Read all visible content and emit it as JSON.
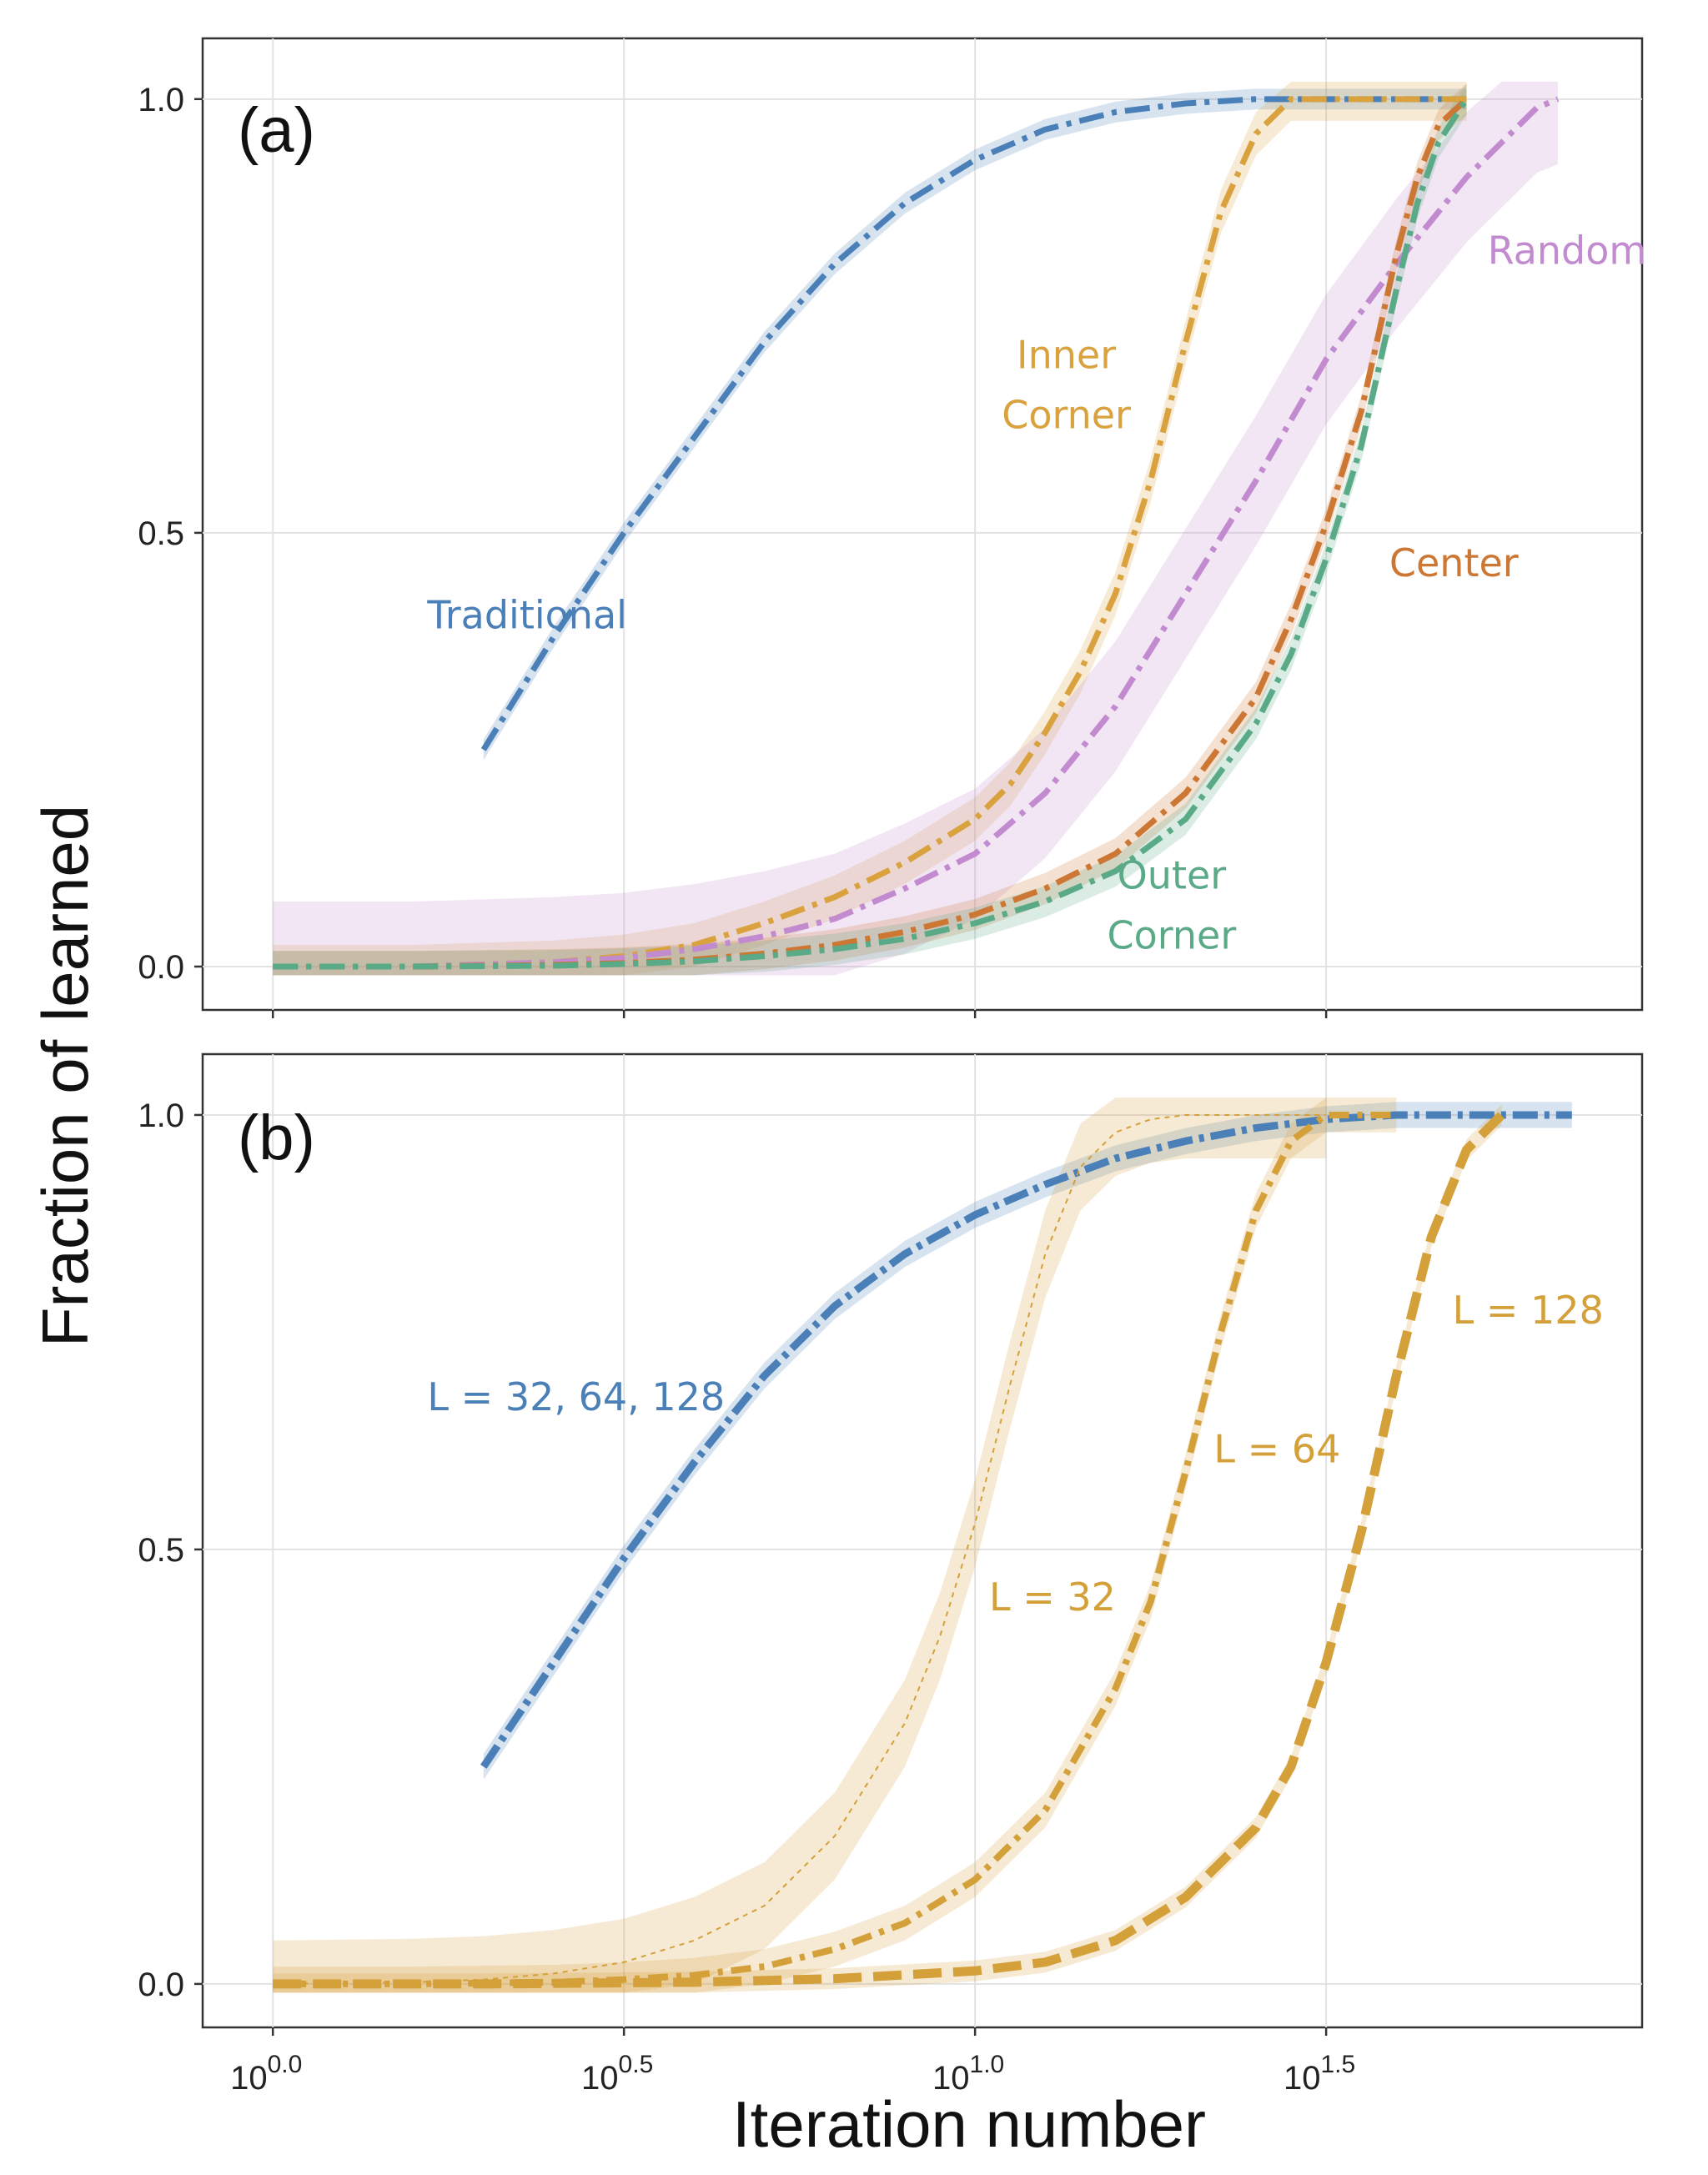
{
  "xlabel": "Iteration number",
  "ylabel": "Fraction of learned",
  "colors": {
    "traditional": "#4a7fb8",
    "inner": "#d9a23e",
    "random": "#c28bcf",
    "center": "#cc7733",
    "outer": "#5aaa88",
    "sizes": "#d4a03a"
  },
  "chart_data": [
    {
      "type": "line",
      "panel_label": "(a)",
      "x_scale": "log10",
      "xlim_log10": [
        -0.1,
        1.95
      ],
      "ylim": [
        -0.05,
        1.07
      ],
      "y_ticks": [
        0.0,
        0.5,
        1.0
      ],
      "y_tick_labels": [
        "0.0",
        "0.5",
        "1.0"
      ],
      "grid": true,
      "series": [
        {
          "name": "Traditional",
          "color": "#4a7fb8",
          "log10_x": [
            0.3,
            0.4,
            0.5,
            0.6,
            0.7,
            0.8,
            0.9,
            1.0,
            1.1,
            1.2,
            1.3,
            1.4,
            1.5,
            1.6,
            1.7
          ],
          "y": [
            0.25,
            0.38,
            0.5,
            0.61,
            0.72,
            0.81,
            0.88,
            0.93,
            0.965,
            0.985,
            0.995,
            1.0,
            1.0,
            1.0,
            1.0
          ],
          "band": 0.012,
          "label_pos_log10_x": 0.22,
          "label_pos_y": 0.39
        },
        {
          "name": "Inner Corner",
          "color": "#d9a23e",
          "log10_x": [
            0.0,
            0.2,
            0.4,
            0.5,
            0.6,
            0.7,
            0.8,
            0.9,
            1.0,
            1.05,
            1.1,
            1.15,
            1.2,
            1.25,
            1.3,
            1.35,
            1.4,
            1.45,
            1.5,
            1.6,
            1.7
          ],
          "y": [
            0.0,
            0.0,
            0.005,
            0.012,
            0.025,
            0.05,
            0.08,
            0.12,
            0.17,
            0.21,
            0.27,
            0.34,
            0.43,
            0.56,
            0.72,
            0.87,
            0.96,
            1.0,
            1.0,
            1.0,
            1.0
          ],
          "band": 0.025,
          "label_pos_log10_x": 1.13,
          "label_pos_y": 0.69
        },
        {
          "name": "Random",
          "color": "#c28bcf",
          "log10_x": [
            0.0,
            0.2,
            0.4,
            0.5,
            0.6,
            0.7,
            0.8,
            0.9,
            1.0,
            1.1,
            1.2,
            1.3,
            1.4,
            1.5,
            1.6,
            1.65,
            1.7,
            1.75,
            1.8,
            1.83
          ],
          "y": [
            0.0,
            0.0,
            0.005,
            0.01,
            0.02,
            0.035,
            0.055,
            0.09,
            0.13,
            0.2,
            0.3,
            0.43,
            0.56,
            0.7,
            0.81,
            0.86,
            0.91,
            0.95,
            0.99,
            1.0
          ],
          "band": 0.075,
          "label_pos_log10_x": 1.73,
          "label_pos_y": 0.81
        },
        {
          "name": "Center",
          "color": "#cc7733",
          "log10_x": [
            0.0,
            0.2,
            0.4,
            0.5,
            0.6,
            0.7,
            0.8,
            0.9,
            1.0,
            1.1,
            1.2,
            1.3,
            1.4,
            1.45,
            1.5,
            1.55,
            1.6,
            1.63,
            1.66,
            1.7
          ],
          "y": [
            0.0,
            0.0,
            0.002,
            0.004,
            0.008,
            0.015,
            0.025,
            0.04,
            0.06,
            0.09,
            0.13,
            0.2,
            0.31,
            0.4,
            0.51,
            0.64,
            0.82,
            0.91,
            0.97,
            1.0
          ],
          "band": 0.018,
          "label_pos_log10_x": 1.59,
          "label_pos_y": 0.45
        },
        {
          "name": "Outer Corner",
          "color": "#5aaa88",
          "log10_x": [
            0.0,
            0.2,
            0.4,
            0.5,
            0.6,
            0.7,
            0.8,
            0.9,
            1.0,
            1.1,
            1.2,
            1.3,
            1.4,
            1.45,
            1.5,
            1.55,
            1.6,
            1.63,
            1.66,
            1.7
          ],
          "y": [
            0.0,
            0.0,
            0.001,
            0.003,
            0.006,
            0.012,
            0.02,
            0.032,
            0.05,
            0.075,
            0.11,
            0.17,
            0.28,
            0.36,
            0.47,
            0.6,
            0.78,
            0.88,
            0.95,
            1.0
          ],
          "band": 0.018,
          "label_pos_log10_x": 1.28,
          "label_pos_y": 0.09
        }
      ]
    },
    {
      "type": "line",
      "panel_label": "(b)",
      "x_scale": "log10",
      "x_ticks_log10": [
        0.0,
        0.5,
        1.0,
        1.5
      ],
      "x_tick_labels": [
        "10^0.0",
        "10^0.5",
        "10^1.0",
        "10^1.5"
      ],
      "xlim_log10": [
        -0.1,
        1.95
      ],
      "ylim": [
        -0.05,
        1.07
      ],
      "y_ticks": [
        0.0,
        0.5,
        1.0
      ],
      "y_tick_labels": [
        "0.0",
        "0.5",
        "1.0"
      ],
      "grid": true,
      "series": [
        {
          "name": "L = 32, 64, 128",
          "color": "#4a7fb8",
          "log10_x": [
            0.3,
            0.4,
            0.5,
            0.6,
            0.7,
            0.8,
            0.9,
            1.0,
            1.1,
            1.2,
            1.3,
            1.4,
            1.5,
            1.6,
            1.7,
            1.8,
            1.85
          ],
          "y": [
            0.25,
            0.37,
            0.49,
            0.6,
            0.7,
            0.78,
            0.84,
            0.885,
            0.92,
            0.95,
            0.97,
            0.985,
            0.995,
            1.0,
            1.0,
            1.0,
            1.0
          ],
          "band": 0.015,
          "label_pos_log10_x": 0.22,
          "label_pos_y": 0.66
        },
        {
          "name": "L = 32",
          "color": "#d4a03a",
          "log10_x": [
            0.0,
            0.2,
            0.3,
            0.4,
            0.5,
            0.6,
            0.7,
            0.8,
            0.9,
            0.95,
            1.0,
            1.05,
            1.1,
            1.15,
            1.2,
            1.25,
            1.3,
            1.4,
            1.5
          ],
          "y": [
            0.0,
            0.002,
            0.005,
            0.012,
            0.025,
            0.05,
            0.09,
            0.17,
            0.3,
            0.4,
            0.53,
            0.69,
            0.84,
            0.94,
            0.98,
            0.995,
            1.0,
            1.0,
            1.0
          ],
          "band": 0.05,
          "label_pos_log10_x": 1.02,
          "label_pos_y": 0.43
        },
        {
          "name": "L = 64",
          "color": "#d4a03a",
          "log10_x": [
            0.0,
            0.2,
            0.4,
            0.5,
            0.6,
            0.7,
            0.8,
            0.9,
            1.0,
            1.1,
            1.2,
            1.25,
            1.3,
            1.35,
            1.4,
            1.45,
            1.5,
            1.6
          ],
          "y": [
            0.0,
            0.0,
            0.002,
            0.005,
            0.01,
            0.02,
            0.04,
            0.07,
            0.12,
            0.2,
            0.34,
            0.44,
            0.59,
            0.75,
            0.89,
            0.97,
            1.0,
            1.0
          ],
          "band": 0.02,
          "label_pos_log10_x": 1.34,
          "label_pos_y": 0.6
        },
        {
          "name": "L = 128",
          "color": "#d4a03a",
          "log10_x": [
            0.0,
            0.3,
            0.6,
            0.8,
            1.0,
            1.1,
            1.2,
            1.3,
            1.4,
            1.45,
            1.5,
            1.55,
            1.6,
            1.65,
            1.7,
            1.75
          ],
          "y": [
            0.0,
            0.0,
            0.002,
            0.006,
            0.015,
            0.025,
            0.05,
            0.1,
            0.18,
            0.25,
            0.37,
            0.52,
            0.7,
            0.86,
            0.96,
            1.0
          ],
          "band": 0.012,
          "label_pos_log10_x": 1.68,
          "label_pos_y": 0.76
        }
      ]
    }
  ]
}
